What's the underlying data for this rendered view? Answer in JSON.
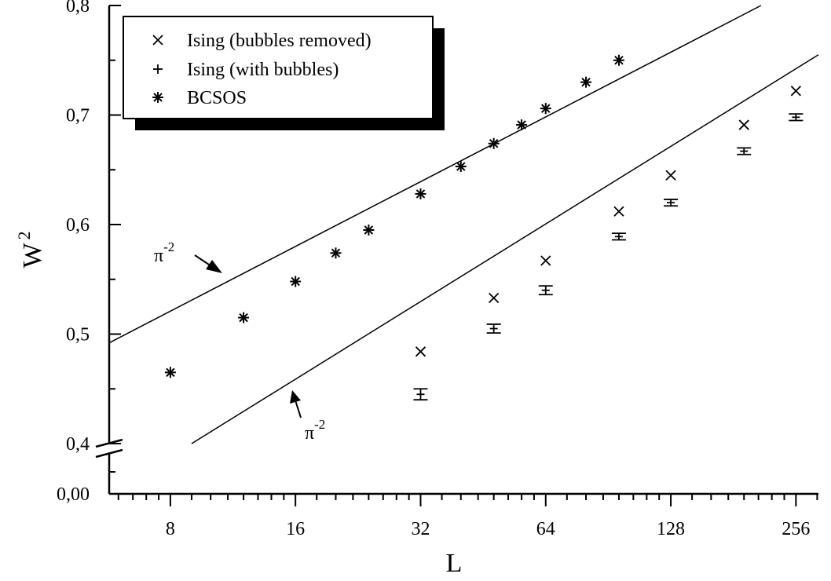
{
  "chart_data": {
    "type": "scatter",
    "xscale": "log2",
    "xlabel": "L",
    "ylabel": "W",
    "ylabel_sup": "2",
    "xlim": [
      5.7,
      290
    ],
    "ylim": [
      0.4,
      0.8
    ],
    "axis_break": {
      "below": "0,4",
      "origin_label": "0,00"
    },
    "xticks": [
      {
        "value": 8,
        "label": "8"
      },
      {
        "value": 16,
        "label": "16"
      },
      {
        "value": 32,
        "label": "32"
      },
      {
        "value": 64,
        "label": "64"
      },
      {
        "value": 128,
        "label": "128"
      },
      {
        "value": 256,
        "label": "256"
      }
    ],
    "yticks": [
      {
        "value": 0.4,
        "label": "0,4"
      },
      {
        "value": 0.5,
        "label": "0,5"
      },
      {
        "value": 0.6,
        "label": "0,6"
      },
      {
        "value": 0.7,
        "label": "0,7"
      },
      {
        "value": 0.8,
        "label": "0,8"
      }
    ],
    "grid": false,
    "legend": {
      "position": "top-left"
    },
    "series": [
      {
        "name": "Ising (bubbles removed)",
        "marker": "x",
        "x": [
          32,
          48,
          64,
          96,
          128,
          192,
          256
        ],
        "y": [
          0.484,
          0.533,
          0.567,
          0.612,
          0.645,
          0.691,
          0.722
        ]
      },
      {
        "name": "Ising (with bubbles)",
        "marker": "plus-errorbar",
        "x": [
          32,
          48,
          64,
          96,
          128,
          192,
          256
        ],
        "y": [
          0.445,
          0.505,
          0.54,
          0.589,
          0.62,
          0.667,
          0.698
        ],
        "yerr": [
          0.005,
          0.004,
          0.004,
          0.003,
          0.003,
          0.003,
          0.003
        ]
      },
      {
        "name": "BCSOS",
        "marker": "asterisk",
        "x": [
          8,
          12,
          16,
          20,
          24,
          32,
          40,
          48,
          56,
          64,
          80,
          96
        ],
        "y": [
          0.465,
          0.515,
          0.548,
          0.574,
          0.595,
          0.628,
          0.653,
          0.674,
          0.691,
          0.706,
          0.73,
          0.75
        ]
      }
    ],
    "reference_lines": [
      {
        "label": "π",
        "sup": "-2",
        "x": [
          5.7,
          211
        ],
        "y": [
          0.492,
          0.8
        ]
      },
      {
        "label": "π",
        "sup": "-2",
        "x": [
          9,
          290
        ],
        "y": [
          0.4,
          0.755
        ]
      }
    ]
  }
}
